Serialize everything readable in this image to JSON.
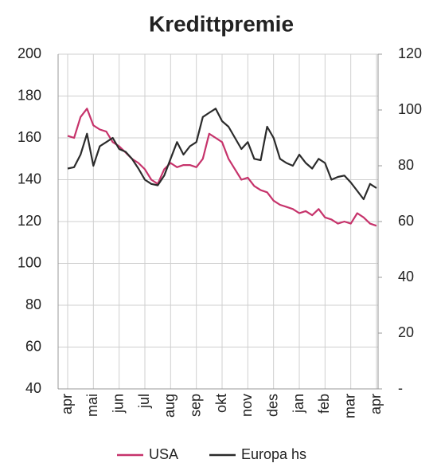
{
  "chart_data": {
    "type": "line",
    "title": "Kredittpremie",
    "categories": [
      "apr",
      null,
      null,
      null,
      "mai",
      null,
      null,
      null,
      "jun",
      null,
      null,
      null,
      "jul",
      null,
      null,
      null,
      "aug",
      null,
      null,
      null,
      "sep",
      null,
      null,
      null,
      "okt",
      null,
      null,
      null,
      "nov",
      null,
      null,
      null,
      "des",
      null,
      null,
      null,
      "jan",
      null,
      null,
      null,
      "feb",
      null,
      null,
      null,
      "mar",
      null,
      null,
      null,
      "apr"
    ],
    "series": [
      {
        "name": "USA",
        "color": "#c6336b",
        "values": [
          161,
          160,
          170,
          174,
          166,
          164,
          163,
          158,
          156,
          153,
          150,
          148,
          145,
          140,
          138,
          145,
          148,
          146,
          147,
          147,
          146,
          150,
          162,
          160,
          158,
          150,
          145,
          140,
          141,
          137,
          135,
          134,
          130,
          128,
          127,
          126,
          124,
          125,
          123,
          126,
          122,
          121,
          119,
          120,
          119,
          124,
          122,
          119,
          118
        ]
      },
      {
        "name": "Europa hs",
        "color": "#2b2b2b",
        "axis": "y2",
        "values": [
          79,
          79.5,
          84,
          91.5,
          80,
          87,
          88.5,
          90,
          86,
          85,
          82.5,
          79,
          75,
          73.5,
          73,
          76.5,
          82.5,
          88.5,
          84,
          87,
          88.5,
          97.5,
          99,
          100.5,
          96,
          94,
          90,
          86,
          88.5,
          82.5,
          82,
          94,
          90,
          82.5,
          81,
          80,
          84,
          81,
          79,
          82.5,
          81,
          75,
          76,
          76.5,
          74,
          71,
          68,
          73.5,
          72
        ]
      }
    ],
    "ylim": [
      40,
      200
    ],
    "yticks": [
      40,
      60,
      80,
      100,
      120,
      140,
      160,
      180,
      200
    ],
    "y2lim": [
      0,
      120
    ],
    "y2ticks": [
      {
        "value": 0,
        "label": "-"
      },
      20,
      40,
      60,
      80,
      100,
      120
    ],
    "grid": true
  }
}
